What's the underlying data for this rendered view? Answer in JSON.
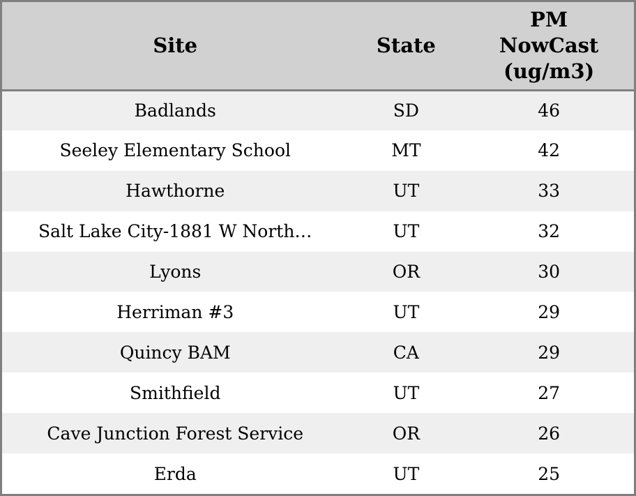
{
  "colors": {
    "border": "#7f7f7f",
    "header_bg": "#d1d1d1",
    "row_alt_bg": "#efefef",
    "row_bg": "#ffffff",
    "text": "#000000"
  },
  "table": {
    "columns": [
      {
        "id": "site",
        "label": "Site"
      },
      {
        "id": "state",
        "label": "State"
      },
      {
        "id": "pm",
        "label": "PM\nNowCast\n(ug/m3)"
      }
    ],
    "rows": [
      {
        "site": "Badlands",
        "state": "SD",
        "pm": "46"
      },
      {
        "site": "Seeley Elementary School",
        "state": "MT",
        "pm": "42"
      },
      {
        "site": "Hawthorne",
        "state": "UT",
        "pm": "33"
      },
      {
        "site": "Salt Lake City-1881 W North…",
        "state": "UT",
        "pm": "32"
      },
      {
        "site": "Lyons",
        "state": "OR",
        "pm": "30"
      },
      {
        "site": "Herriman #3",
        "state": "UT",
        "pm": "29"
      },
      {
        "site": "Quincy BAM",
        "state": "CA",
        "pm": "29"
      },
      {
        "site": "Smithfield",
        "state": "UT",
        "pm": "27"
      },
      {
        "site": "Cave Junction Forest Service",
        "state": "OR",
        "pm": "26"
      },
      {
        "site": "Erda",
        "state": "UT",
        "pm": "25"
      }
    ]
  },
  "chart_data": {
    "type": "table",
    "title": "",
    "columns": [
      "Site",
      "State",
      "PM NowCast (ug/m3)"
    ],
    "rows": [
      [
        "Badlands",
        "SD",
        46
      ],
      [
        "Seeley Elementary School",
        "MT",
        42
      ],
      [
        "Hawthorne",
        "UT",
        33
      ],
      [
        "Salt Lake City-1881 W North…",
        "UT",
        32
      ],
      [
        "Lyons",
        "OR",
        30
      ],
      [
        "Herriman #3",
        "UT",
        29
      ],
      [
        "Quincy BAM",
        "CA",
        29
      ],
      [
        "Smithfield",
        "UT",
        27
      ],
      [
        "Cave Junction Forest Service",
        "OR",
        26
      ],
      [
        "Erda",
        "UT",
        25
      ]
    ]
  }
}
